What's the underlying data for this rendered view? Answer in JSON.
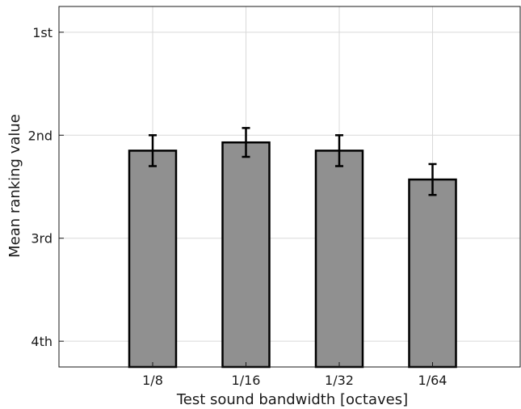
{
  "chart_data": {
    "type": "bar",
    "categories": [
      "1/8",
      "1/16",
      "1/32",
      "1/64"
    ],
    "values": [
      2.15,
      2.07,
      2.15,
      2.43
    ],
    "error": [
      0.15,
      0.14,
      0.15,
      0.15
    ],
    "xlabel": "Test sound bandwidth [octaves]",
    "ylabel": "Mean ranking value",
    "ylim": [
      0.75,
      4.25
    ],
    "y_reversed": true,
    "yticks": [
      {
        "value": 1,
        "label": "1st"
      },
      {
        "value": 2,
        "label": "2nd"
      },
      {
        "value": 3,
        "label": "3rd"
      },
      {
        "value": 4,
        "label": "4th"
      }
    ],
    "grid": true,
    "bar_color": "#909090",
    "bar_edge_color": "#000000"
  }
}
